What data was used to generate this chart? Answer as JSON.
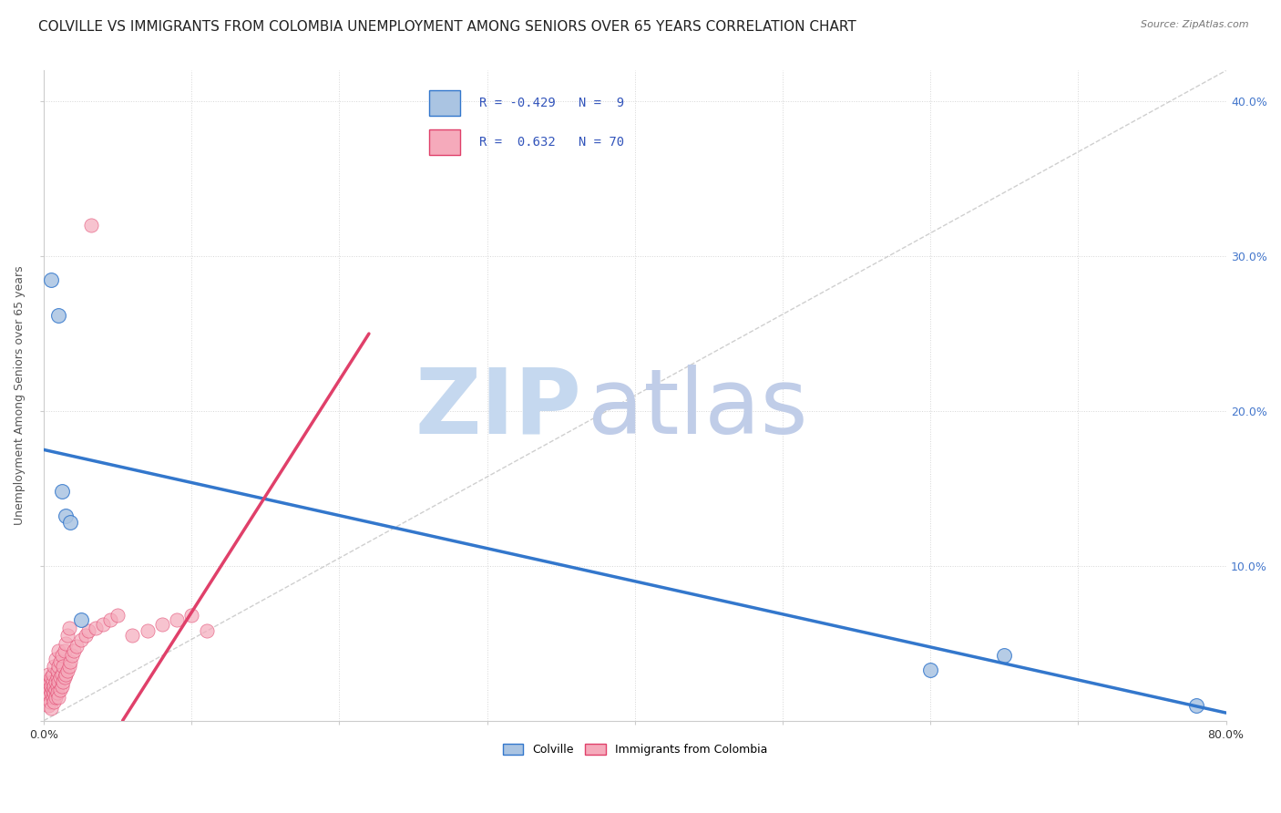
{
  "title": "COLVILLE VS IMMIGRANTS FROM COLOMBIA UNEMPLOYMENT AMONG SENIORS OVER 65 YEARS CORRELATION CHART",
  "source": "Source: ZipAtlas.com",
  "ylabel": "Unemployment Among Seniors over 65 years",
  "colville_R": -0.429,
  "colville_N": 9,
  "colombia_R": 0.632,
  "colombia_N": 70,
  "colville_color": "#aac4e2",
  "colombia_color": "#f5aabb",
  "colville_line_color": "#3377cc",
  "colombia_line_color": "#e0406a",
  "colville_points": [
    [
      0.005,
      0.285
    ],
    [
      0.01,
      0.262
    ],
    [
      0.012,
      0.148
    ],
    [
      0.015,
      0.132
    ],
    [
      0.018,
      0.128
    ],
    [
      0.025,
      0.065
    ],
    [
      0.6,
      0.033
    ],
    [
      0.65,
      0.042
    ],
    [
      0.78,
      0.01
    ]
  ],
  "colombia_points": [
    [
      0.001,
      0.02
    ],
    [
      0.001,
      0.018
    ],
    [
      0.002,
      0.022
    ],
    [
      0.002,
      0.015
    ],
    [
      0.002,
      0.025
    ],
    [
      0.003,
      0.018
    ],
    [
      0.003,
      0.022
    ],
    [
      0.003,
      0.01
    ],
    [
      0.003,
      0.03
    ],
    [
      0.004,
      0.02
    ],
    [
      0.004,
      0.025
    ],
    [
      0.004,
      0.012
    ],
    [
      0.005,
      0.018
    ],
    [
      0.005,
      0.022
    ],
    [
      0.005,
      0.028
    ],
    [
      0.005,
      0.008
    ],
    [
      0.006,
      0.015
    ],
    [
      0.006,
      0.02
    ],
    [
      0.006,
      0.025
    ],
    [
      0.006,
      0.03
    ],
    [
      0.007,
      0.018
    ],
    [
      0.007,
      0.022
    ],
    [
      0.007,
      0.012
    ],
    [
      0.007,
      0.035
    ],
    [
      0.008,
      0.02
    ],
    [
      0.008,
      0.025
    ],
    [
      0.008,
      0.015
    ],
    [
      0.008,
      0.04
    ],
    [
      0.009,
      0.022
    ],
    [
      0.009,
      0.028
    ],
    [
      0.009,
      0.018
    ],
    [
      0.009,
      0.032
    ],
    [
      0.01,
      0.025
    ],
    [
      0.01,
      0.015
    ],
    [
      0.01,
      0.045
    ],
    [
      0.01,
      0.035
    ],
    [
      0.011,
      0.028
    ],
    [
      0.011,
      0.02
    ],
    [
      0.011,
      0.038
    ],
    [
      0.012,
      0.03
    ],
    [
      0.012,
      0.022
    ],
    [
      0.012,
      0.042
    ],
    [
      0.013,
      0.025
    ],
    [
      0.013,
      0.035
    ],
    [
      0.014,
      0.028
    ],
    [
      0.014,
      0.045
    ],
    [
      0.015,
      0.03
    ],
    [
      0.015,
      0.05
    ],
    [
      0.016,
      0.032
    ],
    [
      0.016,
      0.055
    ],
    [
      0.017,
      0.035
    ],
    [
      0.017,
      0.06
    ],
    [
      0.018,
      0.038
    ],
    [
      0.019,
      0.042
    ],
    [
      0.02,
      0.045
    ],
    [
      0.022,
      0.048
    ],
    [
      0.025,
      0.052
    ],
    [
      0.028,
      0.055
    ],
    [
      0.03,
      0.058
    ],
    [
      0.035,
      0.06
    ],
    [
      0.04,
      0.062
    ],
    [
      0.045,
      0.065
    ],
    [
      0.05,
      0.068
    ],
    [
      0.06,
      0.055
    ],
    [
      0.07,
      0.058
    ],
    [
      0.08,
      0.062
    ],
    [
      0.09,
      0.065
    ],
    [
      0.032,
      0.32
    ],
    [
      0.1,
      0.068
    ],
    [
      0.11,
      0.058
    ]
  ],
  "colville_line": [
    [
      0.0,
      0.175
    ],
    [
      0.8,
      0.005
    ]
  ],
  "colombia_line": [
    [
      0.0,
      -0.08
    ],
    [
      0.22,
      0.25
    ]
  ],
  "diag_line": [
    [
      0.0,
      0.0
    ],
    [
      0.8,
      0.42
    ]
  ],
  "xlim": [
    0.0,
    0.8
  ],
  "ylim": [
    0.0,
    0.42
  ],
  "xticks": [
    0.0,
    0.1,
    0.2,
    0.3,
    0.4,
    0.5,
    0.6,
    0.7,
    0.8
  ],
  "yticks": [
    0.0,
    0.1,
    0.2,
    0.3,
    0.4
  ],
  "watermark_zip": "ZIP",
  "watermark_atlas": "atlas",
  "watermark_color_zip": "#c5d8ef",
  "watermark_color_atlas": "#c0cde8",
  "background_color": "#ffffff",
  "title_fontsize": 11,
  "axis_fontsize": 9,
  "tick_fontsize": 9,
  "right_tick_color": "#4477cc",
  "legend_text_color": "#3355bb"
}
